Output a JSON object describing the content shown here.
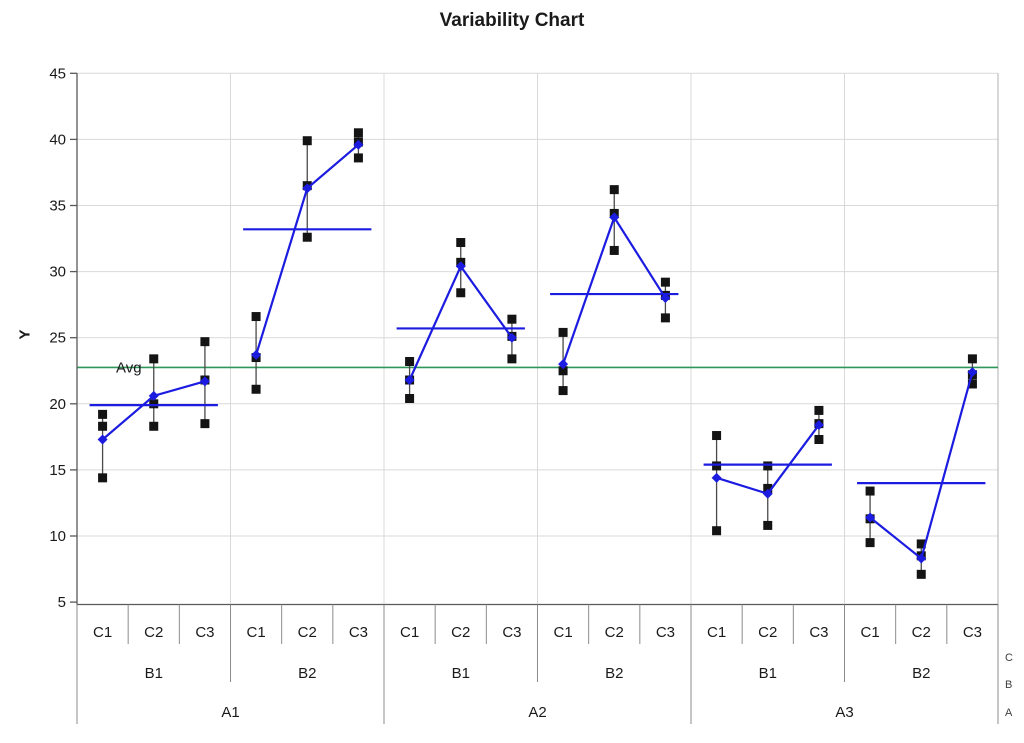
{
  "chart_data": {
    "type": "variability",
    "title": "Variability Chart",
    "ylabel": "Y",
    "yticks": [
      5,
      10,
      15,
      20,
      25,
      30,
      35,
      40,
      45
    ],
    "ylim": [
      5,
      45
    ],
    "grid": true,
    "legend_position": "none",
    "avg_line": {
      "label": "Avg",
      "value": 22.75,
      "color": "#2e9658"
    },
    "series_color": "#1c1ce0",
    "point_color": "#141414",
    "range_line_color": "#4a4a4a",
    "grid_color": "#d9d9d9",
    "axis_color": "#595959",
    "separator_color": "#8c8c8c",
    "c_labels": [
      "C1",
      "C2",
      "C3"
    ],
    "b_labels": [
      "B1",
      "B2"
    ],
    "a_labels": [
      "A1",
      "A2",
      "A3"
    ],
    "factor_legend": [
      "C",
      "B",
      "A"
    ],
    "groups": [
      {
        "a": "A1",
        "b": "B1",
        "mean": 19.9,
        "cells": [
          {
            "c": "C1",
            "points": [
              19.2,
              18.3,
              14.4
            ],
            "mean": 17.3
          },
          {
            "c": "C2",
            "points": [
              23.4,
              20.0,
              18.3
            ],
            "mean": 20.6
          },
          {
            "c": "C3",
            "points": [
              24.7,
              21.8,
              18.5
            ],
            "mean": 21.7
          }
        ]
      },
      {
        "a": "A1",
        "b": "B2",
        "mean": 33.2,
        "cells": [
          {
            "c": "C1",
            "points": [
              26.6,
              23.5,
              21.1
            ],
            "mean": 23.7
          },
          {
            "c": "C2",
            "points": [
              39.9,
              36.5,
              32.6
            ],
            "mean": 36.3
          },
          {
            "c": "C3",
            "points": [
              40.5,
              39.8,
              38.6
            ],
            "mean": 39.6
          }
        ]
      },
      {
        "a": "A2",
        "b": "B1",
        "mean": 25.7,
        "cells": [
          {
            "c": "C1",
            "points": [
              23.2,
              21.8,
              20.4
            ],
            "mean": 21.8
          },
          {
            "c": "C2",
            "points": [
              32.2,
              30.7,
              28.4
            ],
            "mean": 30.4
          },
          {
            "c": "C3",
            "points": [
              26.4,
              25.1,
              23.4
            ],
            "mean": 25.0
          }
        ]
      },
      {
        "a": "A2",
        "b": "B2",
        "mean": 28.3,
        "cells": [
          {
            "c": "C1",
            "points": [
              25.4,
              22.5,
              21.0
            ],
            "mean": 23.0
          },
          {
            "c": "C2",
            "points": [
              36.2,
              34.4,
              31.6
            ],
            "mean": 34.1
          },
          {
            "c": "C3",
            "points": [
              29.2,
              28.2,
              26.5
            ],
            "mean": 28.0
          }
        ]
      },
      {
        "a": "A3",
        "b": "B1",
        "mean": 15.4,
        "cells": [
          {
            "c": "C1",
            "points": [
              17.6,
              15.3,
              10.4
            ],
            "mean": 14.4
          },
          {
            "c": "C2",
            "points": [
              15.3,
              13.6,
              10.8
            ],
            "mean": 13.2
          },
          {
            "c": "C3",
            "points": [
              19.5,
              18.5,
              17.3
            ],
            "mean": 18.4
          }
        ]
      },
      {
        "a": "A3",
        "b": "B2",
        "mean": 14.0,
        "cells": [
          {
            "c": "C1",
            "points": [
              13.4,
              11.3,
              9.5
            ],
            "mean": 11.4
          },
          {
            "c": "C2",
            "points": [
              9.4,
              8.5,
              7.1
            ],
            "mean": 8.3
          },
          {
            "c": "C3",
            "points": [
              23.4,
              22.2,
              21.5
            ],
            "mean": 22.4
          }
        ]
      }
    ]
  }
}
